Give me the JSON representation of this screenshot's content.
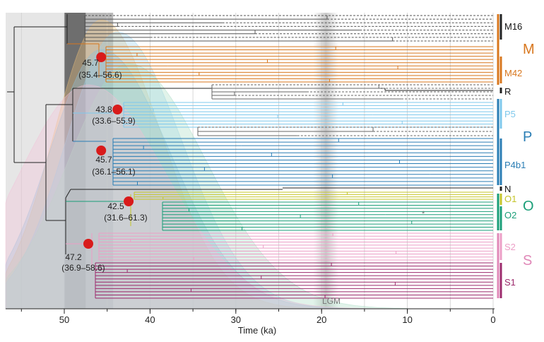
{
  "chart_data": {
    "type": "phylogenetic-tree",
    "xlabel": "Time (ka)",
    "x_axis": {
      "ticks": [
        50,
        40,
        30,
        20,
        10,
        0
      ],
      "reversed": true,
      "range": [
        55,
        0
      ]
    },
    "shaded_periods": [
      {
        "name": "dark-band",
        "from_ka": 50,
        "to_ka": 47.5,
        "color": "#555555"
      },
      {
        "name": "medium-band",
        "from_ka": 47.5,
        "to_ka": 44.3,
        "color": "#888888"
      },
      {
        "name": "light-band",
        "from_ka": 55,
        "to_ka": 50,
        "color": "#cccccc"
      }
    ],
    "lgm": {
      "label": "LGM",
      "center_ka": 19.5,
      "width_ka": 3
    },
    "node_estimates": [
      {
        "clade": "M",
        "age": "45.7",
        "hpd": "(35.4–56.6)",
        "age_ka": 45.7,
        "color": "#d81b1b"
      },
      {
        "clade": "P5",
        "age": "43.8",
        "hpd": "(33.6–55.9)",
        "age_ka": 43.8,
        "color": "#d81b1b"
      },
      {
        "clade": "P",
        "age": "45.7",
        "hpd": "(36.1–56.1)",
        "age_ka": 45.7,
        "color": "#d81b1b"
      },
      {
        "clade": "O",
        "age": "42.5",
        "hpd": "(31.6–61.3)",
        "age_ka": 42.5,
        "color": "#d81b1b"
      },
      {
        "clade": "S",
        "age": "47.2",
        "hpd": "(36.9–58.6)",
        "age_ka": 47.2,
        "color": "#d81b1b"
      }
    ],
    "clades": [
      {
        "label": "M16",
        "color": "#222222"
      },
      {
        "label": "M42",
        "color": "#d8771e"
      },
      {
        "label": "R",
        "color": "#222222"
      },
      {
        "label": "P5",
        "color": "#7ec8ec"
      },
      {
        "label": "P4b1",
        "color": "#2a7db4"
      },
      {
        "label": "N",
        "color": "#222222"
      },
      {
        "label": "O1",
        "color": "#c4c42a"
      },
      {
        "label": "O2",
        "color": "#1a9e78"
      },
      {
        "label": "S2",
        "color": "#ec9ec6"
      },
      {
        "label": "S1",
        "color": "#9c2a6c"
      }
    ],
    "superclades": [
      {
        "label": "M",
        "color": "#d8771e"
      },
      {
        "label": "P",
        "color": "#2a7db4"
      },
      {
        "label": "O",
        "color": "#1a9e78"
      },
      {
        "label": "S",
        "color": "#e088b8"
      }
    ],
    "density_curves": [
      {
        "clade": "M",
        "color": "#f0c27a",
        "peak_ka": 45.7
      },
      {
        "clade": "P5",
        "color": "#9fd4ee",
        "peak_ka": 43.8
      },
      {
        "clade": "P",
        "color": "#8cc0dc",
        "peak_ka": 45.7
      },
      {
        "clade": "O",
        "color": "#a8dcc4",
        "peak_ka": 42.5
      },
      {
        "clade": "S",
        "color": "#f4c0d8",
        "peak_ka": 47.2
      }
    ],
    "annotations": [
      "*"
    ]
  }
}
